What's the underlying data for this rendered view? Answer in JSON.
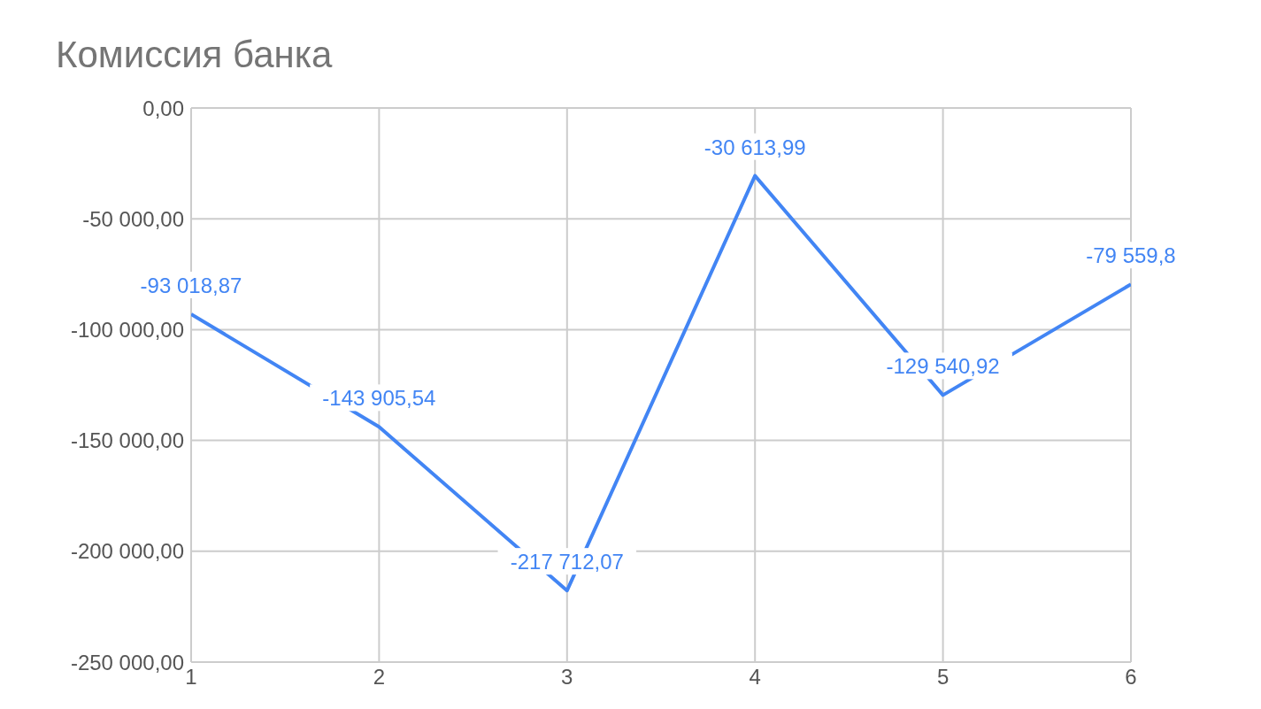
{
  "chart_data": {
    "type": "line",
    "title": "Комиссия банка",
    "x": [
      1,
      2,
      3,
      4,
      5,
      6
    ],
    "series": [
      {
        "color": "#4285f4",
        "values": [
          -93018.87,
          -143905.54,
          -217712.07,
          -30613.99,
          -129540.92,
          -79559.8
        ],
        "value_labels": [
          "-93 018,87",
          "-143 905,54",
          "-217 712,07",
          "-30 613,99",
          "-129 540,92",
          "-79 559,8"
        ]
      }
    ],
    "xlim": [
      1,
      6
    ],
    "xticks": [
      1,
      2,
      3,
      4,
      5,
      6
    ],
    "ylim": [
      -250000,
      0
    ],
    "yticks": [
      {
        "value": -250000,
        "label": "-250 000,00"
      },
      {
        "value": -200000,
        "label": "-200 000,00"
      },
      {
        "value": -150000,
        "label": "-150 000,00"
      },
      {
        "value": -100000,
        "label": "-100 000,00"
      },
      {
        "value": -50000,
        "label": "-50 000,00"
      },
      {
        "value": 0,
        "label": "0,00"
      }
    ],
    "grid": true,
    "marker": "none",
    "line_style": "solid"
  }
}
